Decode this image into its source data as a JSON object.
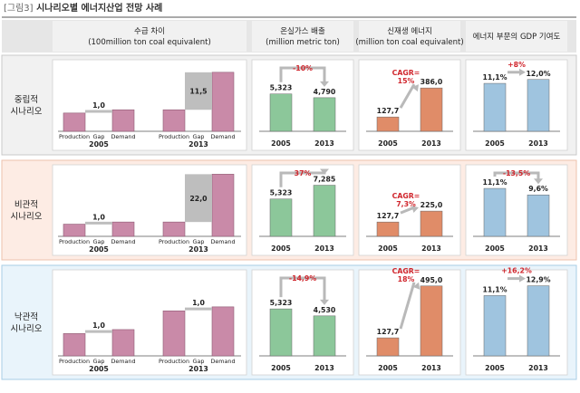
{
  "figure": {
    "tag": "[그림3]",
    "title": "시나리오별 에너지산업 전망 사례"
  },
  "column_headers": [
    {
      "line1": "수급 차이",
      "line2": "(100million ton coal equivalent)"
    },
    {
      "line1": "온실가스 배출",
      "line2": "(million metric ton)"
    },
    {
      "line1": "신재생 에너지",
      "line2": "(million ton coal equivalent)"
    },
    {
      "line1": "에너지 부문의 GDP 기여도",
      "line2": ""
    }
  ],
  "colors": {
    "gap_bar": "#c98aa8",
    "ghg_bar": "#8cc79a",
    "renew_bar": "#e08c68",
    "gdp_bar": "#9fc4df",
    "gap_box": "#bebebe",
    "arrow": "#b9b9b9",
    "annotation": "#d0262d"
  },
  "chart_data": [
    {
      "type": "bar",
      "scenario": "중립적 시나리오",
      "metric": "수급 차이",
      "x": [
        "2005",
        "2013"
      ],
      "categories": [
        "Production",
        "Gap",
        "Demand"
      ],
      "series": [
        {
          "values": [
            5.6,
            6.6
          ]
        },
        {
          "values": [
            1.0,
            11.5
          ]
        },
        {
          "values": [
            6.6,
            18.1
          ]
        }
      ],
      "gap_labels": [
        "1,0",
        "11,5"
      ],
      "ylim": [
        0,
        20
      ]
    },
    {
      "type": "bar",
      "scenario": "중립적 시나리오",
      "metric": "온실가스 배출",
      "categories": [
        "2005",
        "2013"
      ],
      "values": [
        5323,
        4790
      ],
      "labels": [
        "5,323",
        "4,790"
      ],
      "annotation": "-10%",
      "ylim": [
        0,
        8000
      ]
    },
    {
      "type": "bar",
      "scenario": "중립적 시나리오",
      "metric": "신재생 에너지",
      "categories": [
        "2005",
        "2013"
      ],
      "values": [
        127.7,
        386.0
      ],
      "labels": [
        "127,7",
        "386,0"
      ],
      "annotation": "CAGR=\n15%",
      "ylim": [
        0,
        500
      ]
    },
    {
      "type": "bar",
      "scenario": "중립적 시나리오",
      "metric": "에너지 부문의 GDP 기여도",
      "categories": [
        "2005",
        "2013"
      ],
      "values": [
        11.1,
        12.0
      ],
      "labels": [
        "11,1%",
        "12,0%"
      ],
      "annotation": "+8%",
      "ylim": [
        0,
        13
      ]
    },
    {
      "type": "bar",
      "scenario": "비관적 시나리오",
      "metric": "수급 차이",
      "x": [
        "2005",
        "2013"
      ],
      "categories": [
        "Production",
        "Gap",
        "Demand"
      ],
      "series": [
        {
          "values": [
            5.6,
            6.6
          ]
        },
        {
          "values": [
            1.0,
            22.0
          ]
        },
        {
          "values": [
            6.6,
            28.6
          ]
        }
      ],
      "gap_labels": [
        "1,0",
        "22,0"
      ],
      "ylim": [
        0,
        30
      ]
    },
    {
      "type": "bar",
      "scenario": "비관적 시나리오",
      "metric": "온실가스 배출",
      "categories": [
        "2005",
        "2013"
      ],
      "values": [
        5323,
        7285
      ],
      "labels": [
        "5,323",
        "7,285"
      ],
      "annotation": "37%",
      "ylim": [
        0,
        8000
      ]
    },
    {
      "type": "bar",
      "scenario": "비관적 시나리오",
      "metric": "신재생 에너지",
      "categories": [
        "2005",
        "2013"
      ],
      "values": [
        127.7,
        225.0
      ],
      "labels": [
        "127,7",
        "225,0"
      ],
      "annotation": "CAGR=\n7,3%",
      "ylim": [
        0,
        500
      ]
    },
    {
      "type": "bar",
      "scenario": "비관적 시나리오",
      "metric": "에너지 부문의 GDP 기여도",
      "categories": [
        "2005",
        "2013"
      ],
      "values": [
        11.1,
        9.6
      ],
      "labels": [
        "11,1%",
        "9,6%"
      ],
      "annotation": "-13,5%",
      "ylim": [
        0,
        13
      ]
    },
    {
      "type": "bar",
      "scenario": "낙관적 시나리오",
      "metric": "수급 차이",
      "x": [
        "2005",
        "2013"
      ],
      "categories": [
        "Production",
        "Gap",
        "Demand"
      ],
      "series": [
        {
          "values": [
            5.6,
            11.3
          ]
        },
        {
          "values": [
            1.0,
            1.0
          ]
        },
        {
          "values": [
            6.6,
            12.3
          ]
        }
      ],
      "gap_labels": [
        "1,0",
        "1,0"
      ],
      "ylim": [
        0,
        20
      ]
    },
    {
      "type": "bar",
      "scenario": "낙관적 시나리오",
      "metric": "온실가스 배출",
      "categories": [
        "2005",
        "2013"
      ],
      "values": [
        5323,
        4530
      ],
      "labels": [
        "5,323",
        "4,530"
      ],
      "annotation": "-14,9%",
      "ylim": [
        0,
        8000
      ]
    },
    {
      "type": "bar",
      "scenario": "낙관적 시나리오",
      "metric": "신재생 에너지",
      "categories": [
        "2005",
        "2013"
      ],
      "values": [
        127.7,
        495.0
      ],
      "labels": [
        "127,7",
        "495,0"
      ],
      "annotation": "CAGR=\n18%",
      "ylim": [
        0,
        500
      ]
    },
    {
      "type": "bar",
      "scenario": "낙관적 시나리오",
      "metric": "에너지 부문의 GDP 기여도",
      "categories": [
        "2005",
        "2013"
      ],
      "values": [
        11.1,
        12.9
      ],
      "labels": [
        "11,1%",
        "12,9%"
      ],
      "annotation": "+16,2%",
      "ylim": [
        0,
        13
      ]
    }
  ]
}
